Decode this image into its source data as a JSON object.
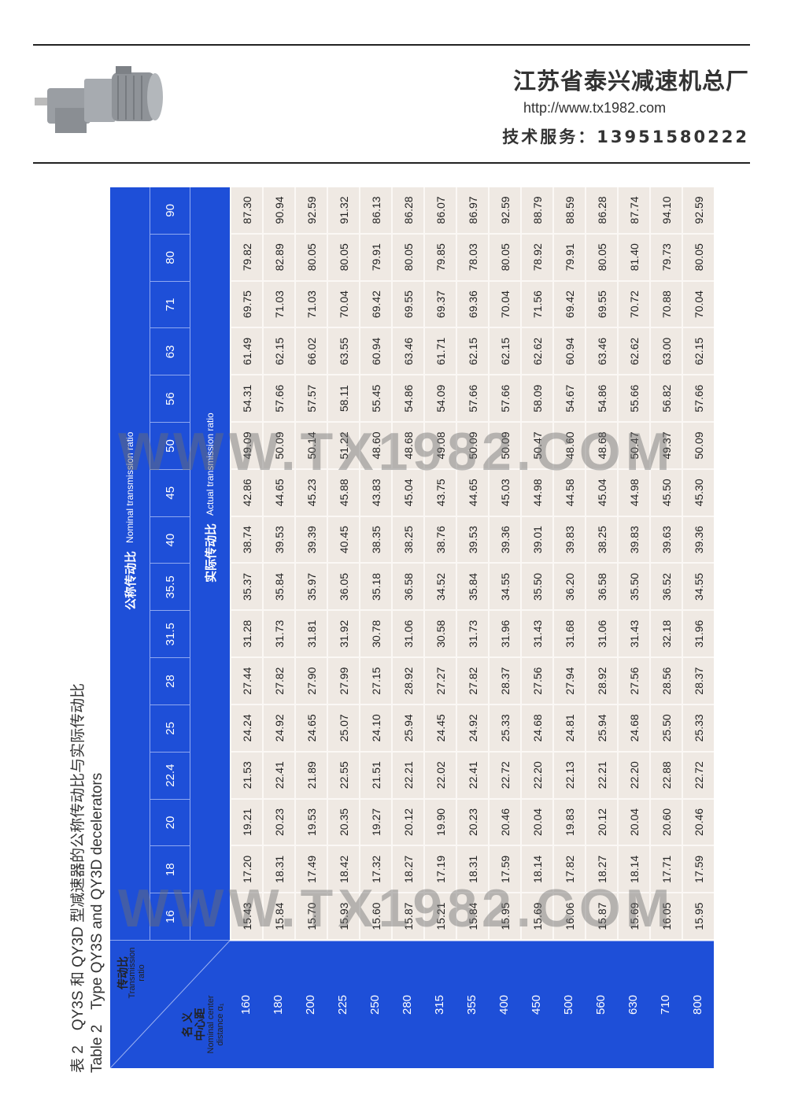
{
  "header": {
    "company": "江苏省泰兴减速机总厂",
    "url": "http://www.tx1982.com",
    "phone": "技术服务：13951580222",
    "product_image": "gear-motor-photo"
  },
  "caption": {
    "cn": "表 2　QY3S 和 QY3D 型减速器的公称传动比与实际传动比",
    "en": "Table 2　Type QY3S and QY3D decelerators"
  },
  "watermark": "WWW.TX1982.COM",
  "colors": {
    "header_blue": "#1e4fd8",
    "cell_bg": "#efe9e3"
  },
  "table": {
    "corner": {
      "ratio_cn": "传动比",
      "ratio_en": "Transmission ratio",
      "distance_cn1": "名 义",
      "distance_cn2": "中心距",
      "distance_en": "Nominal center distance α₁"
    },
    "nominal_cn": "公称传动比",
    "nominal_en": "Nominal transmission ratio",
    "actual_cn": "实际传动比",
    "actual_en": "Actual transmission ratio",
    "nominal_ratios": [
      "16",
      "18",
      "20",
      "22.4",
      "25",
      "28",
      "31.5",
      "35.5",
      "40",
      "45",
      "50",
      "56",
      "63",
      "71",
      "80",
      "90"
    ],
    "rows": [
      {
        "cd": "160",
        "values": [
          "15.43",
          "17.20",
          "19.21",
          "21.53",
          "24.24",
          "27.44",
          "31.28",
          "35.37",
          "38.74",
          "42.86",
          "49.09",
          "54.31",
          "61.49",
          "69.75",
          "79.82",
          "87.30"
        ]
      },
      {
        "cd": "180",
        "values": [
          "15.84",
          "18.31",
          "20.23",
          "22.41",
          "24.92",
          "27.82",
          "31.73",
          "35.84",
          "39.53",
          "44.65",
          "50.09",
          "57.66",
          "62.15",
          "71.03",
          "82.89",
          "90.94"
        ]
      },
      {
        "cd": "200",
        "values": [
          "15.70",
          "17.49",
          "19.53",
          "21.89",
          "24.65",
          "27.90",
          "31.81",
          "35.97",
          "39.39",
          "45.23",
          "50.14",
          "57.57",
          "66.02",
          "71.03",
          "80.05",
          "92.59"
        ]
      },
      {
        "cd": "225",
        "values": [
          "15.93",
          "18.42",
          "20.35",
          "22.55",
          "25.07",
          "27.99",
          "31.92",
          "36.05",
          "40.45",
          "45.88",
          "51.22",
          "58.11",
          "63.55",
          "70.04",
          "80.05",
          "91.32"
        ]
      },
      {
        "cd": "250",
        "values": [
          "15.60",
          "17.32",
          "19.27",
          "21.51",
          "24.10",
          "27.15",
          "30.78",
          "35.18",
          "38.35",
          "43.83",
          "48.60",
          "55.45",
          "60.94",
          "69.42",
          "79.91",
          "86.13"
        ]
      },
      {
        "cd": "280",
        "values": [
          "15.87",
          "18.27",
          "20.12",
          "22.21",
          "25.94",
          "28.92",
          "31.06",
          "36.58",
          "38.25",
          "45.04",
          "48.68",
          "54.86",
          "63.46",
          "69.55",
          "80.05",
          "86.28"
        ]
      },
      {
        "cd": "315",
        "values": [
          "15.21",
          "17.19",
          "19.90",
          "22.02",
          "24.45",
          "27.27",
          "30.58",
          "34.52",
          "38.76",
          "43.75",
          "49.08",
          "54.09",
          "61.71",
          "69.37",
          "79.85",
          "86.07"
        ]
      },
      {
        "cd": "355",
        "values": [
          "15.84",
          "18.31",
          "20.23",
          "22.41",
          "24.92",
          "27.82",
          "31.73",
          "35.84",
          "39.53",
          "44.65",
          "50.09",
          "57.66",
          "62.15",
          "69.36",
          "78.03",
          "86.97"
        ]
      },
      {
        "cd": "400",
        "values": [
          "15.95",
          "17.59",
          "20.46",
          "22.72",
          "25.33",
          "28.37",
          "31.96",
          "34.55",
          "39.36",
          "45.03",
          "50.09",
          "57.66",
          "62.15",
          "70.04",
          "80.05",
          "92.59"
        ]
      },
      {
        "cd": "450",
        "values": [
          "15.69",
          "18.14",
          "20.04",
          "22.20",
          "24.68",
          "27.56",
          "31.43",
          "35.50",
          "39.01",
          "44.98",
          "50.47",
          "58.09",
          "62.62",
          "71.56",
          "78.92",
          "88.79"
        ]
      },
      {
        "cd": "500",
        "values": [
          "16.06",
          "17.82",
          "19.83",
          "22.13",
          "24.81",
          "27.94",
          "31.68",
          "36.20",
          "39.83",
          "44.58",
          "48.60",
          "54.67",
          "60.94",
          "69.42",
          "79.91",
          "88.59"
        ]
      },
      {
        "cd": "560",
        "values": [
          "15.87",
          "18.27",
          "20.12",
          "22.21",
          "25.94",
          "28.92",
          "31.06",
          "36.58",
          "38.25",
          "45.04",
          "48.68",
          "54.86",
          "63.46",
          "69.55",
          "80.05",
          "86.28"
        ]
      },
      {
        "cd": "630",
        "values": [
          "15.69",
          "18.14",
          "20.04",
          "22.20",
          "24.68",
          "27.56",
          "31.43",
          "35.50",
          "39.83",
          "44.98",
          "50.47",
          "55.66",
          "62.62",
          "70.72",
          "81.40",
          "87.74"
        ]
      },
      {
        "cd": "710",
        "values": [
          "16.05",
          "17.71",
          "20.60",
          "22.88",
          "25.50",
          "28.56",
          "32.18",
          "36.52",
          "39.63",
          "45.50",
          "49.37",
          "56.82",
          "63.00",
          "70.88",
          "79.73",
          "94.10"
        ]
      },
      {
        "cd": "800",
        "values": [
          "15.95",
          "17.59",
          "20.46",
          "22.72",
          "25.33",
          "28.37",
          "31.96",
          "34.55",
          "39.36",
          "45.30",
          "50.09",
          "57.66",
          "62.15",
          "70.04",
          "80.05",
          "92.59"
        ]
      }
    ]
  }
}
